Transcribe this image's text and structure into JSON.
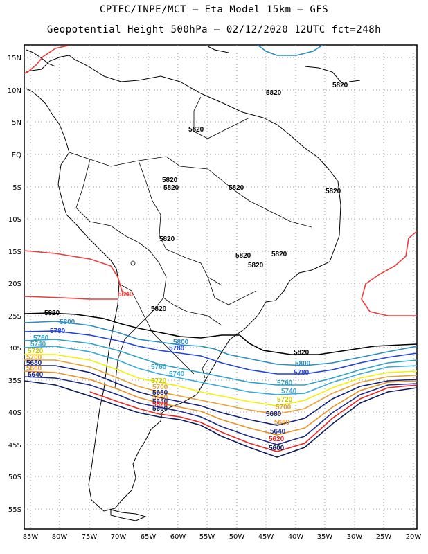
{
  "header": {
    "title_line1": "CPTEC/INPE/MCT –  Eta Model 15km – GFS",
    "title_line2": "Geopotential Height 500hPa – 02/12/2020 12UTC fct=248h"
  },
  "axes": {
    "lat_ticks": [
      "15N",
      "10N",
      "5N",
      "EQ",
      "5S",
      "10S",
      "15S",
      "20S",
      "25S",
      "30S",
      "35S",
      "40S",
      "45S",
      "50S",
      "55S"
    ],
    "lon_ticks": [
      "85W",
      "80W",
      "75W",
      "70W",
      "65W",
      "60W",
      "55W",
      "50W",
      "45W",
      "40W",
      "35W",
      "30W",
      "25W",
      "20W"
    ]
  },
  "colors": {
    "c5640_red": "#ee3b3b",
    "c5820_black": "#000000",
    "c5800_cyan": "#2a8cbf",
    "c5780_blue": "#1c3fe8",
    "c5760_teal": "#2aa0c8",
    "c5740_lightblue": "#35a8d8",
    "c5720_yellow": "#f2f200",
    "c5700_orange": "#e8a030",
    "c5680_navy": "#10207a",
    "c5660_orange": "#e89020",
    "c5620_red": "#ee2020",
    "c5600_navy": "#0a1a5a"
  },
  "contour_labels": {
    "l5820_a": "5820",
    "l5820_b": "5820",
    "l5820_c": "5820",
    "l5820_d": "5820",
    "l5820_e": "5820",
    "l5820_f": "5820",
    "l5820_g": "5820",
    "l5820_h": "5820",
    "l5820_i": "5820",
    "l5820_j": "5820",
    "l5820_k": "5820",
    "l5820_l": "5820",
    "l5820_m": "5820",
    "l5820_n": "5820",
    "l5640_north": "5640",
    "w5800": "5800",
    "w5780": "5780",
    "w5760": "5760",
    "w5740": "5740",
    "w5720": "5720",
    "w5700": "5700",
    "w5680": "5680",
    "w5660": "5660",
    "w5640": "5640",
    "m5800": "5800",
    "m5780": "5780",
    "m5760": "5760",
    "m5740": "5740",
    "m5720": "5720",
    "m5700": "5700",
    "m5680": "5680",
    "m5660": "5660",
    "m5640": "5640",
    "m5620": "5620",
    "m5600": "5600",
    "e5800": "5800",
    "e5780": "5780",
    "e5760": "5760",
    "e5740": "5740",
    "e5720": "5720",
    "e5700": "5700",
    "e5680": "5680",
    "e5660": "5660",
    "e5640": "5640",
    "e5620": "5620",
    "e5600": "5600"
  }
}
